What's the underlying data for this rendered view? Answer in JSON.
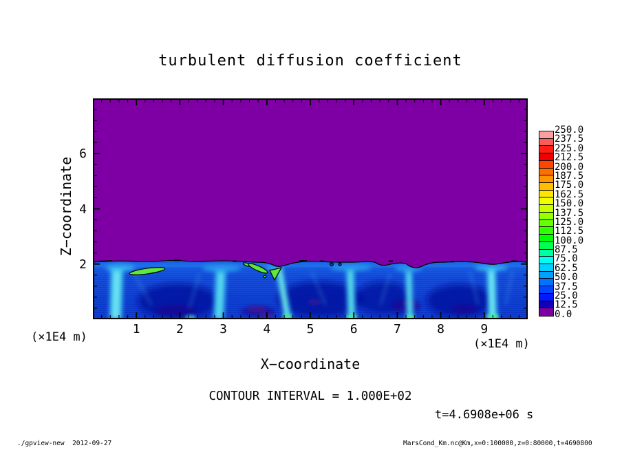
{
  "title": "turbulent diffusion coefficient",
  "axes": {
    "x": {
      "label": "X−coordinate",
      "unit": "(×1E4 m)",
      "ticks": [
        "1",
        "2",
        "3",
        "4",
        "5",
        "6",
        "7",
        "8",
        "9"
      ],
      "range": [
        0,
        10
      ]
    },
    "y": {
      "label": "Z−coordinate",
      "unit": "(×1E4 m)",
      "ticks": [
        "2",
        "4",
        "6"
      ],
      "range": [
        0,
        8
      ]
    }
  },
  "annotations": {
    "contour_interval": "CONTOUR INTERVAL = 1.000E+02",
    "time": "t=4.6908e+06 s"
  },
  "footer": {
    "left": "./gpview-new  2012-09-27",
    "right": "MarsCond_Km.nc@Km,x=0:100000,z=0:80000,t=4690800"
  },
  "colorbar": {
    "labels": [
      "250.0",
      "237.5",
      "225.0",
      "212.5",
      "200.0",
      "187.5",
      "175.0",
      "162.5",
      "150.0",
      "137.5",
      "125.0",
      "112.5",
      "100.0",
      "87.5",
      "75.0",
      "62.5",
      "50.0",
      "37.5",
      "25.0",
      "12.5",
      "0.0"
    ],
    "cells_top_to_bottom": [
      "#FF9EA0",
      "#FF5A5A",
      "#FF1E14",
      "#F00000",
      "#FF4600",
      "#FF6E00",
      "#FF9600",
      "#FFBE00",
      "#FFE600",
      "#F0FF00",
      "#C8FF00",
      "#96FF00",
      "#64FF00",
      "#32FF00",
      "#00FF00",
      "#00FF50",
      "#00FFA0",
      "#00FFF0",
      "#00D2FF",
      "#00A0FF",
      "#0073FF",
      "#0046FF",
      "#0019FF",
      "#1400B9",
      "#7E00A5"
    ]
  },
  "colors": {
    "field_zero_purple": "#7E00A5",
    "frame": "#000000",
    "contour_line": "#000000",
    "blob_green": "#5CE83C"
  },
  "chart_data": {
    "type": "heatmap",
    "title": "turbulent diffusion coefficient",
    "xlabel": "X−coordinate",
    "ylabel": "Z−coordinate",
    "x_unit": "×1E4 m",
    "y_unit": "×1E4 m",
    "xlim": [
      0,
      10
    ],
    "ylim": [
      0,
      8
    ],
    "x_ticks": [
      1,
      2,
      3,
      4,
      5,
      6,
      7,
      8,
      9
    ],
    "y_ticks": [
      2,
      4,
      6
    ],
    "value_range": [
      0,
      250
    ],
    "tone_levels_step": 10,
    "label_step": 12.5,
    "contour_interval": 100,
    "time_seconds": 4690800,
    "legend_position": "right",
    "grid": false,
    "field_summary": {
      "upper_quiescent_region": {
        "z_range": [
          2,
          8
        ],
        "value": 0,
        "color": "#7E00A5"
      },
      "turbulent_boundary_layer": {
        "z_range": [
          0,
          2
        ],
        "typical_value_range": [
          12.5,
          100
        ]
      },
      "black_contour_along_z": 2,
      "updraft_plume_x_positions": [
        0.55,
        2.9,
        4.35,
        5.95,
        7.3,
        9.2
      ],
      "local_maxima_blobs": [
        {
          "x_range": [
            0.9,
            1.6
          ],
          "z": 1.8,
          "value_above": 100
        },
        {
          "x_range": [
            3.6,
            4.3
          ],
          "z": 1.7,
          "value_above": 100
        }
      ],
      "low_value_cell_cores_x": [
        1.95,
        5.2,
        6.7,
        8.4
      ]
    }
  }
}
